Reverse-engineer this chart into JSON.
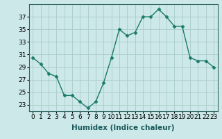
{
  "x": [
    0,
    1,
    2,
    3,
    4,
    5,
    6,
    7,
    8,
    9,
    10,
    11,
    12,
    13,
    14,
    15,
    16,
    17,
    18,
    19,
    20,
    21,
    22,
    23
  ],
  "y": [
    30.5,
    29.5,
    28.0,
    27.5,
    24.5,
    24.5,
    23.5,
    22.5,
    23.5,
    26.5,
    30.5,
    35.0,
    34.0,
    34.5,
    37.0,
    37.0,
    38.2,
    37.0,
    35.5,
    35.5,
    30.5,
    30.0,
    30.0,
    29.0
  ],
  "line_color": "#1a7a6a",
  "marker": "D",
  "markersize": 2.5,
  "linewidth": 1.0,
  "bg_color": "#cce8e8",
  "grid_color": "#aacccc",
  "xlabel": "Humidex (Indice chaleur)",
  "xlim": [
    -0.5,
    23.5
  ],
  "ylim": [
    22,
    39
  ],
  "yticks": [
    23,
    25,
    27,
    29,
    31,
    33,
    35,
    37
  ],
  "xticks": [
    0,
    1,
    2,
    3,
    4,
    5,
    6,
    7,
    8,
    9,
    10,
    11,
    12,
    13,
    14,
    15,
    16,
    17,
    18,
    19,
    20,
    21,
    22,
    23
  ],
  "xlabel_fontsize": 7.5,
  "tick_fontsize": 6.5
}
